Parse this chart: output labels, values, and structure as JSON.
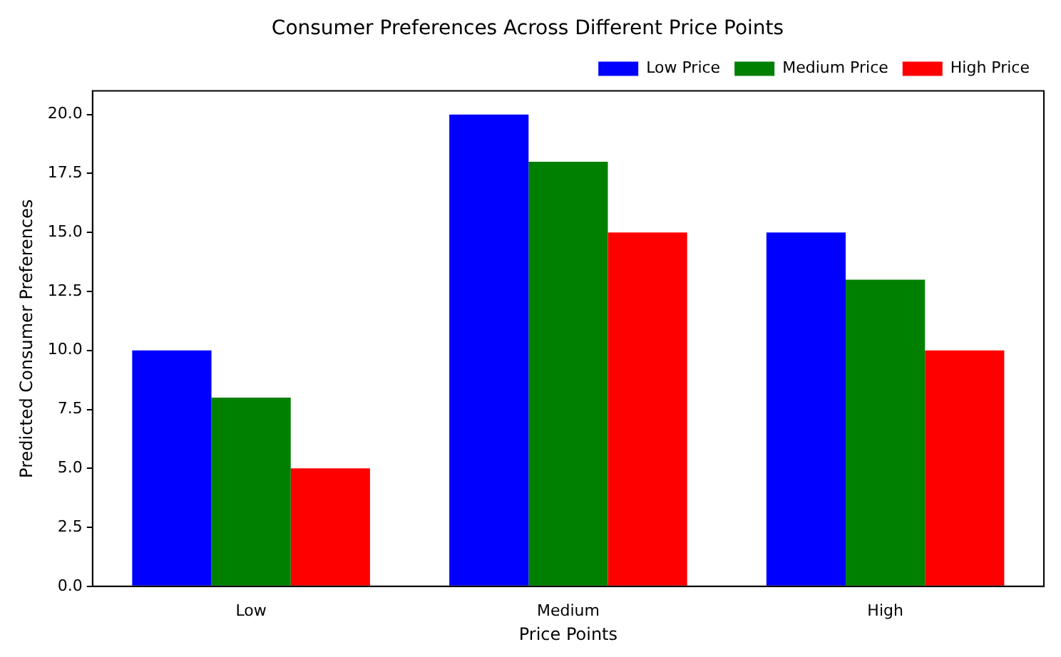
{
  "chart_data": {
    "type": "bar",
    "title": "Consumer Preferences Across Different Price Points",
    "xlabel": "Price Points",
    "ylabel": "Predicted Consumer Preferences",
    "categories": [
      "Low",
      "Medium",
      "High"
    ],
    "series": [
      {
        "name": "Low Price",
        "color": "#0000ff",
        "values": [
          10,
          20,
          15
        ]
      },
      {
        "name": "Medium Price",
        "color": "#008000",
        "values": [
          8,
          18,
          13
        ]
      },
      {
        "name": "High Price",
        "color": "#ff0000",
        "values": [
          5,
          15,
          10
        ]
      }
    ],
    "ylim": [
      0,
      21
    ],
    "yticks": [
      {
        "value": 0,
        "label": "0.0"
      },
      {
        "value": 2.5,
        "label": "2.5"
      },
      {
        "value": 5,
        "label": "5.0"
      },
      {
        "value": 7.5,
        "label": "7.5"
      },
      {
        "value": 10,
        "label": "10.0"
      },
      {
        "value": 12.5,
        "label": "12.5"
      },
      {
        "value": 15,
        "label": "15.0"
      },
      {
        "value": 17.5,
        "label": "17.5"
      },
      {
        "value": 20,
        "label": "20.0"
      }
    ],
    "legend": "top right",
    "grid": false
  }
}
